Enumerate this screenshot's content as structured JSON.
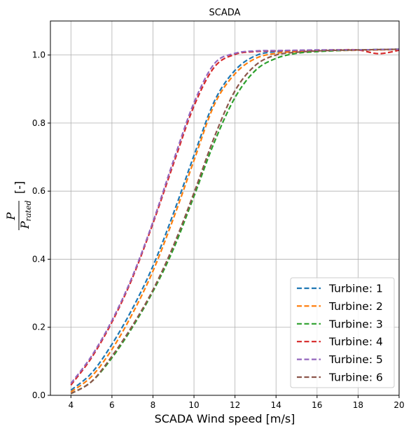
{
  "chart_data": {
    "type": "line",
    "title": "SCADA",
    "xlabel": "SCADA Wind speed [m/s]",
    "ylabel": {
      "numerator": "P",
      "denominator_main": "P",
      "denominator_sub": "rated",
      "unit": "[-]"
    },
    "xlim": [
      3,
      20
    ],
    "ylim": [
      0,
      1.1
    ],
    "xticks": [
      4,
      6,
      8,
      10,
      12,
      14,
      16,
      18,
      20
    ],
    "yticks": [
      0.0,
      0.2,
      0.4,
      0.6,
      0.8,
      1.0
    ],
    "ytick_labels": [
      "0.0",
      "0.2",
      "0.4",
      "0.6",
      "0.8",
      "1.0"
    ],
    "grid": true,
    "legend_position": "bottom-right",
    "line_style": "dashed",
    "series": [
      {
        "name": "Turbine: 1",
        "color": "#1f77b4",
        "x": [
          4,
          5,
          6,
          7,
          8,
          9,
          10,
          11,
          12,
          13,
          14,
          15,
          16,
          17,
          18,
          19,
          20
        ],
        "y": [
          0.015,
          0.065,
          0.15,
          0.255,
          0.38,
          0.535,
          0.705,
          0.865,
          0.955,
          0.998,
          1.01,
          1.012,
          1.014,
          1.015,
          1.015,
          1.016,
          1.017
        ]
      },
      {
        "name": "Turbine: 2",
        "color": "#ff7f0e",
        "x": [
          4,
          5,
          6,
          7,
          8,
          9,
          10,
          11,
          12,
          13,
          14,
          15,
          16,
          17,
          18,
          19,
          20
        ],
        "y": [
          0.01,
          0.055,
          0.135,
          0.24,
          0.365,
          0.52,
          0.69,
          0.855,
          0.945,
          0.99,
          1.005,
          1.01,
          1.012,
          1.013,
          1.014,
          1.015,
          1.016
        ]
      },
      {
        "name": "Turbine: 3",
        "color": "#2ca02c",
        "x": [
          4,
          5,
          6,
          7,
          8,
          9,
          10,
          11,
          12,
          13,
          14,
          15,
          16,
          17,
          18,
          19,
          20
        ],
        "y": [
          0.005,
          0.04,
          0.11,
          0.2,
          0.305,
          0.43,
          0.585,
          0.745,
          0.875,
          0.955,
          0.99,
          1.005,
          1.01,
          1.013,
          1.015,
          1.016,
          1.017
        ]
      },
      {
        "name": "Turbine: 4",
        "color": "#d62728",
        "x": [
          4,
          5,
          6,
          7,
          8,
          9,
          10,
          11,
          12,
          13,
          14,
          15,
          16,
          17,
          18,
          19,
          20
        ],
        "y": [
          0.03,
          0.11,
          0.215,
          0.345,
          0.505,
          0.68,
          0.85,
          0.965,
          1.002,
          1.01,
          1.012,
          1.013,
          1.014,
          1.015,
          1.015,
          1.004,
          1.014
        ]
      },
      {
        "name": "Turbine: 5",
        "color": "#9467bd",
        "x": [
          4,
          5,
          6,
          7,
          8,
          9,
          10,
          11,
          12,
          13,
          14,
          15,
          16,
          17,
          18,
          19,
          20
        ],
        "y": [
          0.035,
          0.115,
          0.22,
          0.35,
          0.51,
          0.69,
          0.86,
          0.975,
          1.005,
          1.012,
          1.013,
          1.014,
          1.015,
          1.015,
          1.015,
          1.016,
          1.017
        ]
      },
      {
        "name": "Turbine: 6",
        "color": "#8c564b",
        "x": [
          4,
          5,
          6,
          7,
          8,
          9,
          10,
          11,
          12,
          13,
          14,
          15,
          16,
          17,
          18,
          19,
          20
        ],
        "y": [
          0.005,
          0.04,
          0.115,
          0.205,
          0.31,
          0.44,
          0.595,
          0.76,
          0.895,
          0.97,
          1.0,
          1.008,
          1.012,
          1.014,
          1.015,
          1.016,
          1.017
        ]
      }
    ]
  }
}
